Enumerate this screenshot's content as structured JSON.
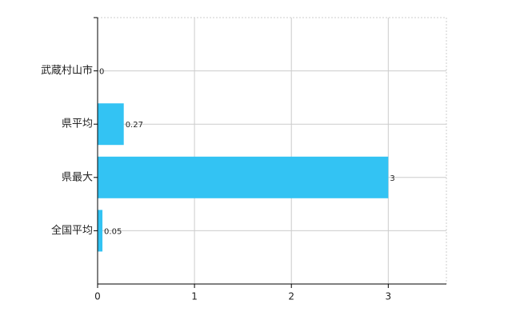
{
  "chart_data": {
    "type": "bar",
    "orientation": "horizontal",
    "categories": [
      "武蔵村山市",
      "県平均",
      "県最大",
      "全国平均"
    ],
    "values": [
      0,
      0.27,
      3,
      0.05
    ],
    "color": "#33c3f3",
    "xlim": [
      0,
      3.6
    ],
    "xticks": [
      0,
      1,
      2,
      3
    ],
    "grid": true
  }
}
